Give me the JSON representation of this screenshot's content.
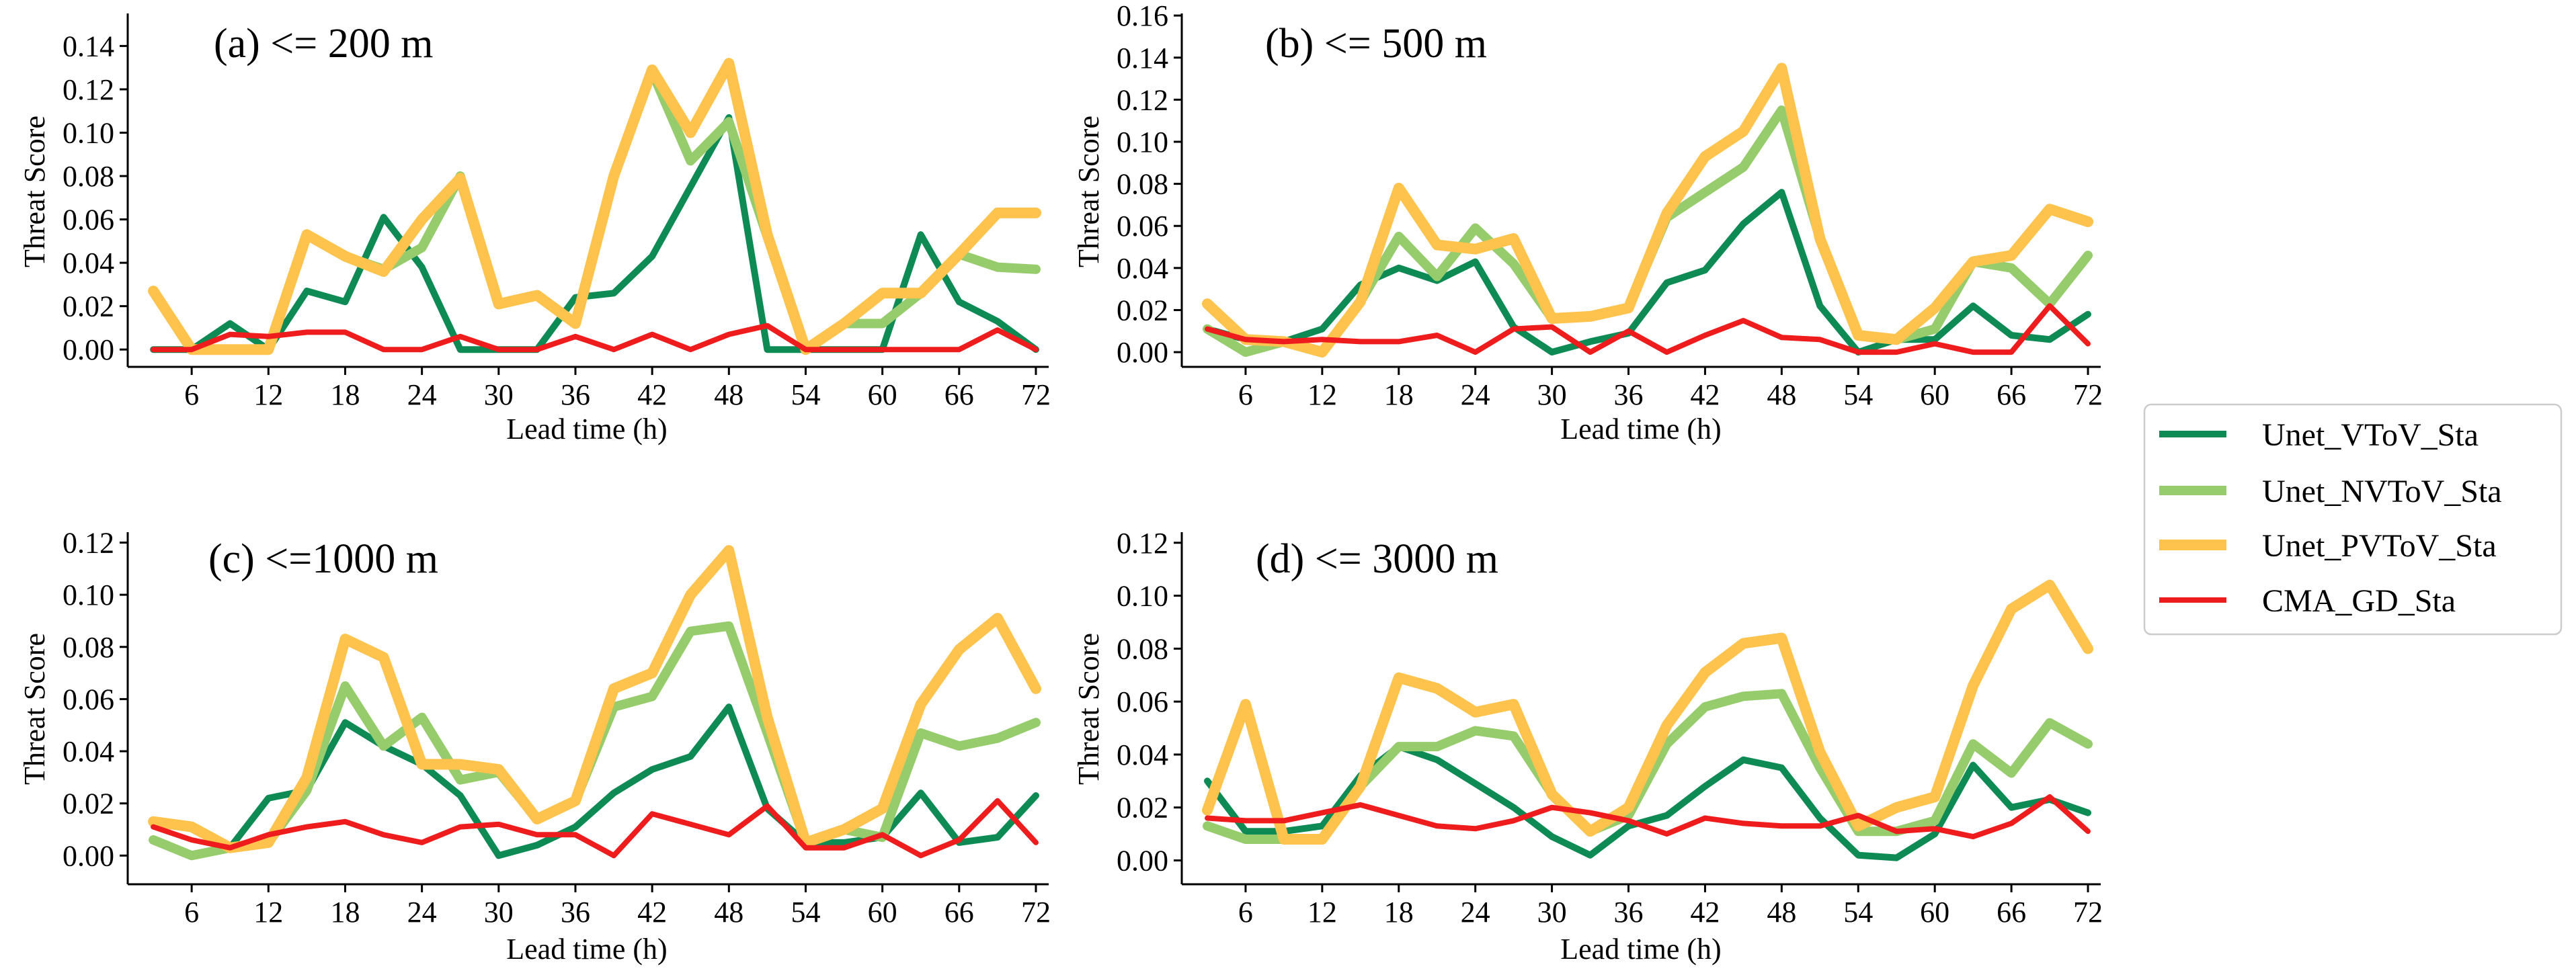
{
  "legend": {
    "entries": [
      {
        "name": "Unet_VToV_Sta",
        "color": "#0e8a55"
      },
      {
        "name": "Unet_NVToV_Sta",
        "color": "#96cc6c"
      },
      {
        "name": "Unet_PVToV_Sta",
        "color": "#fdc34d"
      },
      {
        "name": "CMA_GD_Sta",
        "color": "#ee1c1c"
      }
    ]
  },
  "chart_data": [
    {
      "type": "line",
      "title": "(a) <= 200 m",
      "xlabel": "Lead time (h)",
      "ylabel": "Threat Score",
      "xlim": [
        1,
        73
      ],
      "ylim": [
        -0.008,
        0.155
      ],
      "xticks": [
        6,
        12,
        18,
        24,
        30,
        36,
        42,
        48,
        54,
        60,
        66,
        72
      ],
      "yticks": [
        "0.00",
        "0.02",
        "0.04",
        "0.06",
        "0.08",
        "0.10",
        "0.12",
        "0.14"
      ],
      "x": [
        3,
        6,
        9,
        12,
        15,
        18,
        21,
        24,
        27,
        30,
        33,
        36,
        39,
        42,
        45,
        48,
        51,
        54,
        57,
        60,
        63,
        66,
        69,
        72
      ],
      "series": [
        {
          "name": "Unet_VToV_Sta",
          "values": [
            0.0,
            0.0,
            0.012,
            0.0,
            0.027,
            0.022,
            0.061,
            0.038,
            0.0,
            0.0,
            0.0,
            0.024,
            0.026,
            0.043,
            0.075,
            0.107,
            0.0,
            0.0,
            0.0,
            0.0,
            0.053,
            0.022,
            0.013,
            0.0
          ]
        },
        {
          "name": "Unet_NVToV_Sta",
          "values": [
            0.027,
            0.0,
            0.0,
            0.0,
            0.053,
            0.043,
            0.037,
            0.047,
            0.08,
            0.021,
            0.025,
            0.012,
            0.08,
            0.128,
            0.087,
            0.105,
            0.052,
            0.0,
            0.012,
            0.012,
            0.026,
            0.044,
            0.038,
            0.037
          ]
        },
        {
          "name": "Unet_PVToV_Sta",
          "values": [
            0.027,
            0.0,
            0.0,
            0.0,
            0.053,
            0.043,
            0.036,
            0.06,
            0.079,
            0.021,
            0.025,
            0.012,
            0.08,
            0.129,
            0.1,
            0.132,
            0.053,
            0.0,
            0.012,
            0.026,
            0.026,
            0.044,
            0.063,
            0.063
          ]
        },
        {
          "name": "CMA_GD_Sta",
          "values": [
            0.0,
            0.0,
            0.007,
            0.006,
            0.008,
            0.008,
            0.0,
            0.0,
            0.006,
            0.0,
            0.0,
            0.006,
            0.0,
            0.007,
            0.0,
            0.007,
            0.011,
            0.0,
            0.0,
            0.0,
            0.0,
            0.0,
            0.009,
            0.0
          ]
        }
      ]
    },
    {
      "type": "line",
      "title": "(b) <= 500 m",
      "xlabel": "Lead time (h)",
      "ylabel": "Threat Score",
      "xlim": [
        1,
        73
      ],
      "ylim": [
        -0.007,
        0.161
      ],
      "xticks": [
        6,
        12,
        18,
        24,
        30,
        36,
        42,
        48,
        54,
        60,
        66,
        72
      ],
      "yticks": [
        "0.00",
        "0.02",
        "0.04",
        "0.06",
        "0.08",
        "0.10",
        "0.12",
        "0.14",
        "0.16"
      ],
      "x": [
        3,
        6,
        9,
        12,
        15,
        18,
        21,
        24,
        27,
        30,
        33,
        36,
        39,
        42,
        45,
        48,
        51,
        54,
        57,
        60,
        63,
        66,
        69,
        72
      ],
      "series": [
        {
          "name": "Unet_VToV_Sta",
          "values": [
            0.011,
            0.006,
            0.005,
            0.011,
            0.032,
            0.04,
            0.034,
            0.043,
            0.012,
            0.0,
            0.005,
            0.009,
            0.033,
            0.039,
            0.061,
            0.076,
            0.022,
            0.0,
            0.006,
            0.006,
            0.022,
            0.008,
            0.006,
            0.018
          ]
        },
        {
          "name": "Unet_NVToV_Sta",
          "values": [
            0.011,
            0.0,
            0.005,
            0.0,
            0.024,
            0.055,
            0.036,
            0.059,
            0.042,
            0.016,
            0.017,
            0.021,
            0.064,
            0.076,
            0.088,
            0.115,
            0.054,
            0.008,
            0.006,
            0.011,
            0.043,
            0.04,
            0.023,
            0.046
          ]
        },
        {
          "name": "Unet_PVToV_Sta",
          "values": [
            0.023,
            0.006,
            0.005,
            0.0,
            0.024,
            0.078,
            0.051,
            0.049,
            0.054,
            0.016,
            0.017,
            0.021,
            0.066,
            0.093,
            0.105,
            0.135,
            0.054,
            0.008,
            0.006,
            0.021,
            0.043,
            0.046,
            0.068,
            0.062
          ]
        },
        {
          "name": "CMA_GD_Sta",
          "values": [
            0.011,
            0.006,
            0.005,
            0.006,
            0.005,
            0.005,
            0.008,
            0.0,
            0.011,
            0.012,
            0.0,
            0.01,
            0.0,
            0.008,
            0.015,
            0.007,
            0.006,
            0.0,
            0.0,
            0.004,
            0.0,
            0.0,
            0.022,
            0.004
          ]
        }
      ]
    },
    {
      "type": "line",
      "title": "(c) <=1000 m",
      "xlabel": "Lead time (h)",
      "ylabel": "Threat Score",
      "xlim": [
        1,
        73
      ],
      "ylim": [
        -0.011,
        0.124
      ],
      "xticks": [
        6,
        12,
        18,
        24,
        30,
        36,
        42,
        48,
        54,
        60,
        66,
        72
      ],
      "yticks": [
        "0.00",
        "0.02",
        "0.04",
        "0.06",
        "0.08",
        "0.10",
        "0.12"
      ],
      "x": [
        3,
        6,
        9,
        12,
        15,
        18,
        21,
        24,
        27,
        30,
        33,
        36,
        39,
        42,
        45,
        48,
        51,
        54,
        57,
        60,
        63,
        66,
        69,
        72
      ],
      "series": [
        {
          "name": "Unet_VToV_Sta",
          "values": [
            0.006,
            0.0,
            0.003,
            0.022,
            0.025,
            0.051,
            0.042,
            0.035,
            0.023,
            0.0,
            0.004,
            0.011,
            0.024,
            0.033,
            0.038,
            0.057,
            0.018,
            0.005,
            0.005,
            0.007,
            0.024,
            0.005,
            0.007,
            0.023
          ]
        },
        {
          "name": "Unet_NVToV_Sta",
          "values": [
            0.006,
            0.0,
            0.003,
            0.005,
            0.025,
            0.065,
            0.042,
            0.053,
            0.029,
            0.032,
            0.014,
            0.021,
            0.057,
            0.061,
            0.086,
            0.088,
            0.047,
            0.005,
            0.01,
            0.007,
            0.047,
            0.042,
            0.045,
            0.051
          ]
        },
        {
          "name": "Unet_PVToV_Sta",
          "values": [
            0.013,
            0.011,
            0.003,
            0.005,
            0.03,
            0.083,
            0.076,
            0.035,
            0.035,
            0.033,
            0.014,
            0.021,
            0.064,
            0.07,
            0.1,
            0.117,
            0.053,
            0.005,
            0.01,
            0.018,
            0.058,
            0.079,
            0.091,
            0.064
          ]
        },
        {
          "name": "CMA_GD_Sta",
          "values": [
            0.011,
            0.006,
            0.003,
            0.008,
            0.011,
            0.013,
            0.008,
            0.005,
            0.011,
            0.012,
            0.008,
            0.008,
            0.0,
            0.016,
            0.012,
            0.008,
            0.019,
            0.003,
            0.003,
            0.008,
            0.0,
            0.006,
            0.021,
            0.005
          ]
        }
      ]
    },
    {
      "type": "line",
      "title": "(d) <= 3000 m",
      "xlabel": "Lead time (h)",
      "ylabel": "Threat Score",
      "xlim": [
        1,
        73
      ],
      "ylim": [
        -0.009,
        0.124
      ],
      "xticks": [
        6,
        12,
        18,
        24,
        30,
        36,
        42,
        48,
        54,
        60,
        66,
        72
      ],
      "yticks": [
        "0.00",
        "0.02",
        "0.04",
        "0.06",
        "0.08",
        "0.10",
        "0.12"
      ],
      "x": [
        3,
        6,
        9,
        12,
        15,
        18,
        21,
        24,
        27,
        30,
        33,
        36,
        39,
        42,
        45,
        48,
        51,
        54,
        57,
        60,
        63,
        66,
        69,
        72
      ],
      "series": [
        {
          "name": "Unet_VToV_Sta",
          "values": [
            0.03,
            0.011,
            0.011,
            0.013,
            0.032,
            0.043,
            0.038,
            0.029,
            0.02,
            0.009,
            0.002,
            0.013,
            0.017,
            0.028,
            0.038,
            0.035,
            0.016,
            0.002,
            0.001,
            0.01,
            0.036,
            0.02,
            0.023,
            0.018
          ]
        },
        {
          "name": "Unet_NVToV_Sta",
          "values": [
            0.013,
            0.008,
            0.008,
            0.008,
            0.028,
            0.043,
            0.043,
            0.049,
            0.047,
            0.025,
            0.011,
            0.017,
            0.044,
            0.058,
            0.062,
            0.063,
            0.035,
            0.011,
            0.011,
            0.015,
            0.044,
            0.033,
            0.052,
            0.044
          ]
        },
        {
          "name": "Unet_PVToV_Sta",
          "values": [
            0.019,
            0.059,
            0.008,
            0.008,
            0.028,
            0.069,
            0.065,
            0.056,
            0.059,
            0.025,
            0.011,
            0.02,
            0.051,
            0.071,
            0.082,
            0.084,
            0.041,
            0.013,
            0.02,
            0.024,
            0.066,
            0.095,
            0.104,
            0.08
          ]
        },
        {
          "name": "CMA_GD_Sta",
          "values": [
            0.016,
            0.015,
            0.015,
            0.018,
            0.021,
            0.017,
            0.013,
            0.012,
            0.015,
            0.02,
            0.018,
            0.015,
            0.01,
            0.016,
            0.014,
            0.013,
            0.013,
            0.017,
            0.011,
            0.012,
            0.009,
            0.014,
            0.024,
            0.011
          ]
        }
      ]
    }
  ]
}
